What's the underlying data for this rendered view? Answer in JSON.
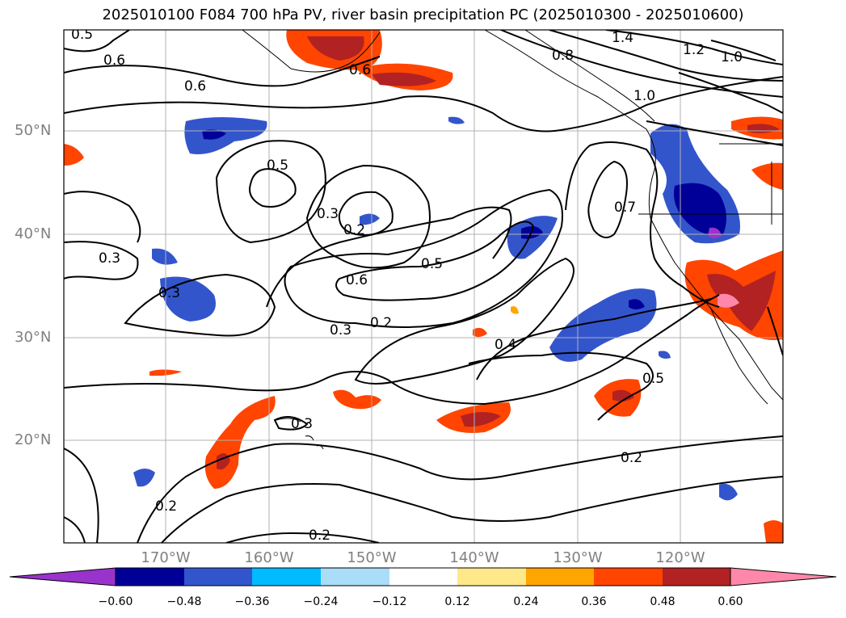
{
  "title": "2025010100 F084 700 hPa PV, river basin precipitation PC (2025010300 - 2025010600)",
  "latitude_labels": [
    "50°N",
    "40°N",
    "30°N",
    "20°N"
  ],
  "longitude_labels": [
    "170°W",
    "160°W",
    "150°W",
    "140°W",
    "130°W",
    "120°W"
  ],
  "contour_labels": [
    "0.5",
    "0.6",
    "0.6",
    "0.6",
    "1.4",
    "0.8",
    "1.2",
    "1.0",
    "1.0",
    "0.5",
    "0.3",
    "0.2",
    "0.3",
    "0.3",
    "0.6",
    "0.5",
    "0.3",
    "0.2",
    "0.4",
    "0.7",
    "0.5",
    "0.3",
    "0.2",
    "0.2",
    "0.2"
  ],
  "colorbar": {
    "tick_labels": [
      "−0.60",
      "−0.48",
      "−0.36",
      "−0.24",
      "−0.12",
      "0.12",
      "0.24",
      "0.36",
      "0.48",
      "0.60"
    ],
    "colors": [
      "#9933cc",
      "#000099",
      "#3355cc",
      "#00bbff",
      "#aaddf8",
      "#ffffff",
      "#ffe88a",
      "#ffa500",
      "#ff4500",
      "#b22222",
      "#ff88aa"
    ]
  }
}
